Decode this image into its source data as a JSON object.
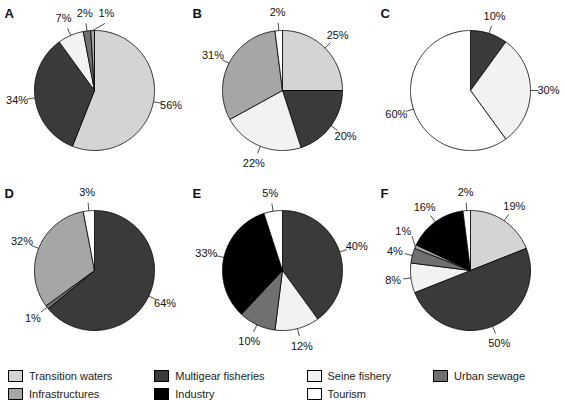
{
  "chart_data": [
    {
      "type": "pie",
      "title": "A",
      "categories": [
        "Transition waters",
        "Multigear fisheries",
        "Seine fishery",
        "Urban sewage",
        "Infrastructures",
        "Industry",
        "Tourism"
      ],
      "values": [
        56,
        34,
        7,
        2,
        1,
        null,
        null
      ],
      "value_labels": [
        "56%",
        "34%",
        "7%",
        "2%",
        "1%",
        null,
        null
      ],
      "colors": [
        "#d4d4d4",
        "#3a3a3a",
        "#f2f2f2",
        "#707070",
        "#a6a6a6",
        "#000000",
        "#ffffff"
      ],
      "data_labels": true,
      "legend": "bottom"
    },
    {
      "type": "pie",
      "title": "B",
      "categories": [
        "Transition waters",
        "Multigear fisheries",
        "Seine fishery",
        "Urban sewage",
        "Infrastructures",
        "Industry",
        "Tourism"
      ],
      "values": [
        25,
        20,
        22,
        null,
        31,
        null,
        2
      ],
      "value_labels": [
        "25%",
        "20%",
        "22%",
        null,
        "31%",
        null,
        "2%"
      ],
      "colors": [
        "#d4d4d4",
        "#3a3a3a",
        "#f2f2f2",
        "#707070",
        "#a6a6a6",
        "#000000",
        "#ffffff"
      ],
      "data_labels": true
    },
    {
      "type": "pie",
      "title": "C",
      "categories": [
        "Transition waters",
        "Multigear fisheries",
        "Seine fishery",
        "Urban sewage",
        "Infrastructures",
        "Industry",
        "Tourism"
      ],
      "values": [
        null,
        10,
        30,
        null,
        null,
        null,
        60
      ],
      "value_labels": [
        null,
        "10%",
        "30%",
        null,
        null,
        null,
        "60%"
      ],
      "colors": [
        "#d4d4d4",
        "#3a3a3a",
        "#f2f2f2",
        "#707070",
        "#a6a6a6",
        "#000000",
        "#ffffff"
      ],
      "data_labels": true
    },
    {
      "type": "pie",
      "title": "D",
      "categories": [
        "Transition waters",
        "Multigear fisheries",
        "Seine fishery",
        "Urban sewage",
        "Infrastructures",
        "Industry",
        "Tourism"
      ],
      "values": [
        null,
        64,
        null,
        1,
        32,
        null,
        3
      ],
      "value_labels": [
        null,
        "64%",
        null,
        "1%",
        "32%",
        null,
        "3%"
      ],
      "colors": [
        "#d4d4d4",
        "#3a3a3a",
        "#f2f2f2",
        "#707070",
        "#a6a6a6",
        "#000000",
        "#ffffff"
      ],
      "data_labels": true
    },
    {
      "type": "pie",
      "title": "E",
      "categories": [
        "Transition waters",
        "Multigear fisheries",
        "Seine fishery",
        "Urban sewage",
        "Infrastructures",
        "Industry",
        "Tourism"
      ],
      "values": [
        null,
        40,
        12,
        10,
        null,
        33,
        5
      ],
      "value_labels": [
        null,
        "40%",
        "12%",
        "10%",
        null,
        "33%",
        "5%"
      ],
      "colors": [
        "#d4d4d4",
        "#3a3a3a",
        "#f2f2f2",
        "#707070",
        "#a6a6a6",
        "#000000",
        "#ffffff"
      ],
      "data_labels": true
    },
    {
      "type": "pie",
      "title": "F",
      "categories": [
        "Transition waters",
        "Multigear fisheries",
        "Seine fishery",
        "Urban sewage",
        "Infrastructures",
        "Industry",
        "Tourism"
      ],
      "values": [
        19,
        50,
        8,
        4,
        1,
        16,
        2
      ],
      "value_labels": [
        "19%",
        "50%",
        "8%",
        "4%",
        "1%",
        "16%",
        "2%"
      ],
      "colors": [
        "#d4d4d4",
        "#3a3a3a",
        "#f2f2f2",
        "#707070",
        "#a6a6a6",
        "#000000",
        "#ffffff"
      ],
      "data_labels": true
    }
  ]
}
